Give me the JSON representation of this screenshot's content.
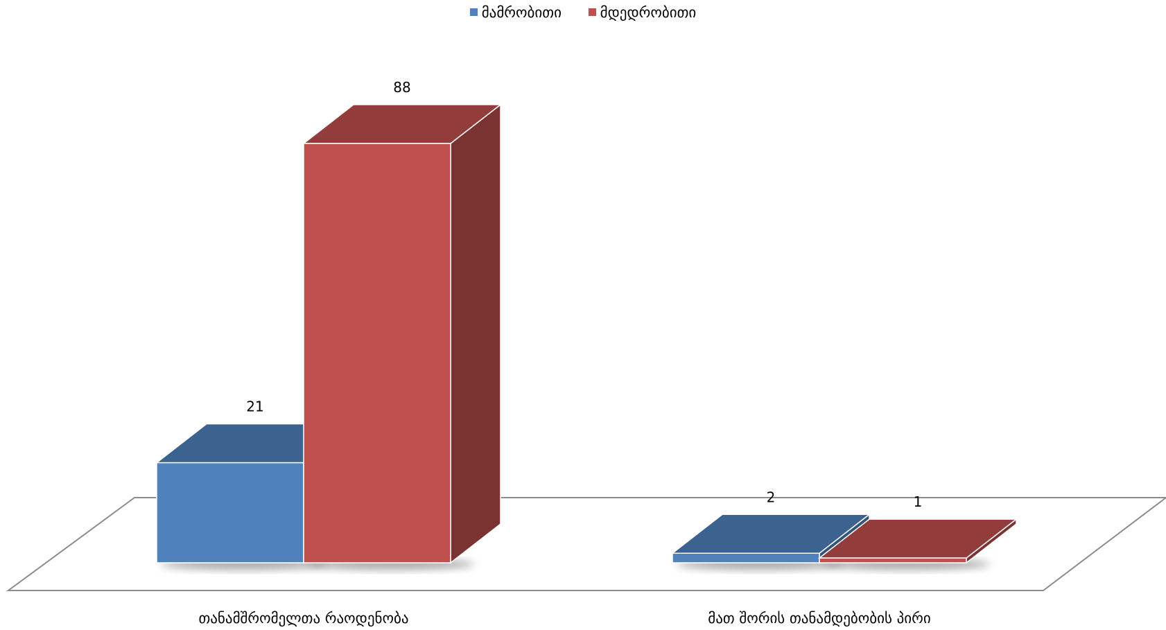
{
  "chart_data": {
    "type": "bar",
    "style": "3d-clustered-column",
    "categories": [
      "თანამშრომელთა რაოდენობა",
      "მათ შორის თანამდებობის პირი"
    ],
    "series": [
      {
        "name": "მამრობითი",
        "values": [
          21,
          2
        ],
        "color": "#4F81BD"
      },
      {
        "name": "მდედრობითი",
        "values": [
          88,
          1
        ],
        "color": "#C0504D"
      }
    ],
    "data_labels": true,
    "legend_position": "top",
    "gridlines": false
  }
}
